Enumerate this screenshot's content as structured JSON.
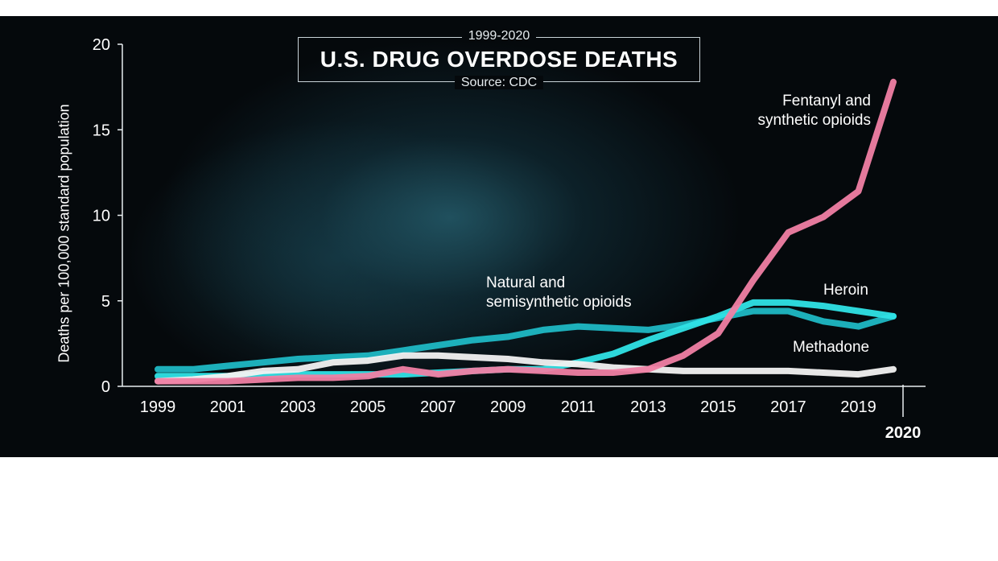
{
  "chart_data": {
    "type": "line",
    "title": "U.S. DRUG OVERDOSE DEATHS",
    "subtitle": "1999-2020",
    "source": "Source: CDC",
    "ylabel": "Deaths per 100,000 standard population",
    "xlabel": "",
    "ylim": [
      0,
      20
    ],
    "xlim": [
      1999,
      2020
    ],
    "yticks": [
      "0",
      "5",
      "10",
      "15",
      "20"
    ],
    "xticks": [
      "1999",
      "2001",
      "2003",
      "2005",
      "2007",
      "2009",
      "2011",
      "2013",
      "2015",
      "2017",
      "2019"
    ],
    "xtick_last": "2020",
    "x": [
      1999,
      2000,
      2001,
      2002,
      2003,
      2004,
      2005,
      2006,
      2007,
      2008,
      2009,
      2010,
      2011,
      2012,
      2013,
      2014,
      2015,
      2016,
      2017,
      2018,
      2019,
      2020
    ],
    "series": [
      {
        "name": "Natural and semisynthetic opioids",
        "label_lines": [
          "Natural and",
          "semisynthetic opioids"
        ],
        "color": "#1fb8c4",
        "values": [
          1.0,
          1.0,
          1.2,
          1.4,
          1.6,
          1.7,
          1.8,
          2.1,
          2.4,
          2.7,
          2.9,
          3.3,
          3.5,
          3.4,
          3.3,
          3.6,
          4.0,
          4.4,
          4.4,
          3.8,
          3.5,
          4.1
        ]
      },
      {
        "name": "Heroin",
        "label_lines": [
          "Heroin"
        ],
        "color": "#2fe3e6",
        "values": [
          0.6,
          0.6,
          0.6,
          0.7,
          0.7,
          0.7,
          0.7,
          0.7,
          0.8,
          0.9,
          1.0,
          1.0,
          1.4,
          1.9,
          2.7,
          3.4,
          4.1,
          4.9,
          4.9,
          4.7,
          4.4,
          4.1
        ]
      },
      {
        "name": "Methadone",
        "label_lines": [
          "Methadone"
        ],
        "color": "#f2f2f2",
        "values": [
          0.3,
          0.4,
          0.6,
          0.9,
          1.0,
          1.4,
          1.5,
          1.8,
          1.8,
          1.7,
          1.6,
          1.4,
          1.3,
          1.1,
          1.0,
          0.9,
          0.9,
          0.9,
          0.9,
          0.8,
          0.7,
          1.0
        ]
      },
      {
        "name": "Fentanyl and synthetic opioids",
        "label_lines": [
          "Fentanyl and",
          "synthetic opioids"
        ],
        "color": "#f07fa4",
        "values": [
          0.3,
          0.3,
          0.3,
          0.4,
          0.5,
          0.5,
          0.6,
          1.0,
          0.7,
          0.9,
          1.0,
          0.9,
          0.8,
          0.8,
          1.0,
          1.8,
          3.1,
          6.2,
          9.0,
          9.9,
          11.4,
          17.8
        ]
      }
    ],
    "grid": false,
    "legend": "inline labels"
  }
}
